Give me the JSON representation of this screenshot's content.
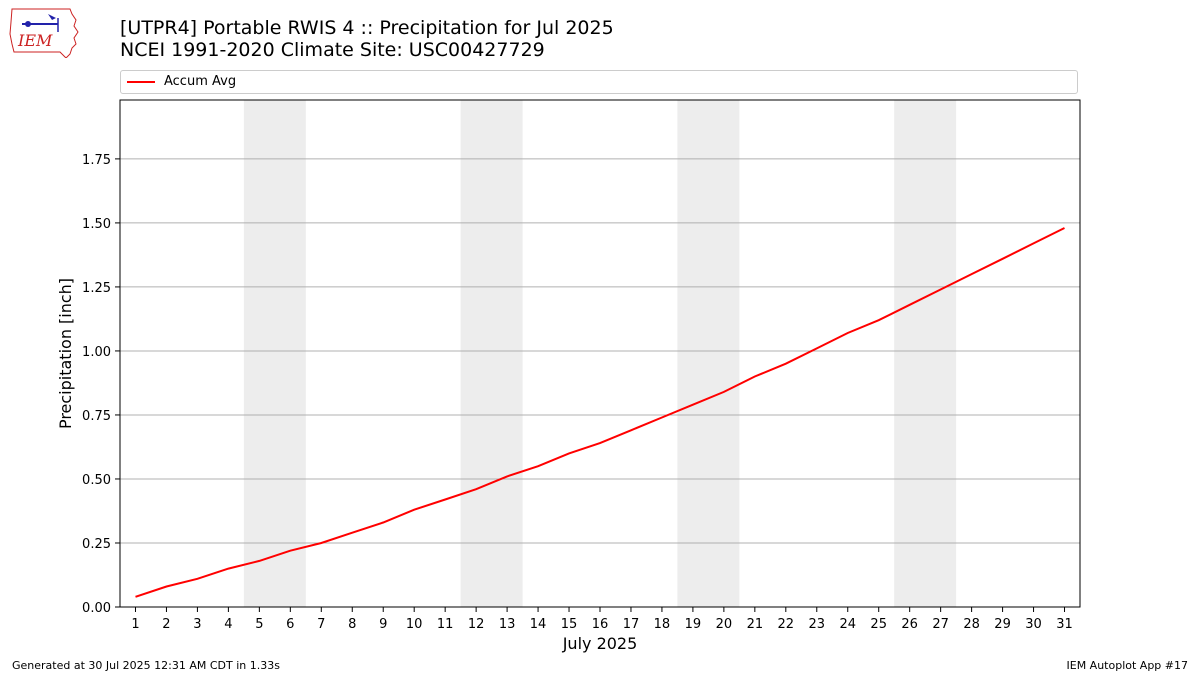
{
  "header": {
    "title_line1": "[UTPR4] Portable RWIS 4 :: Precipitation for Jul 2025",
    "title_line2": "NCEI 1991-2020 Climate Site: USC00427729"
  },
  "logo": {
    "text": "IEM",
    "color": "#cc2222",
    "icon": "iowa-state-outline-icon"
  },
  "footer": {
    "left": "Generated at 30 Jul 2025 12:31 AM CDT in 1.33s",
    "right": "IEM Autoplot App #17"
  },
  "chart_data": {
    "type": "line",
    "xlabel": "July 2025",
    "ylabel": "Precipitation [inch]",
    "x": [
      1,
      2,
      3,
      4,
      5,
      6,
      7,
      8,
      9,
      10,
      11,
      12,
      13,
      14,
      15,
      16,
      17,
      18,
      19,
      20,
      21,
      22,
      23,
      24,
      25,
      26,
      27,
      28,
      29,
      30,
      31
    ],
    "xlim": [
      0.5,
      31.5
    ],
    "ylim": [
      0,
      1.98
    ],
    "yticks": [
      0,
      0.25,
      0.5,
      0.75,
      1.0,
      1.25,
      1.5,
      1.75
    ],
    "ytick_labels": [
      "0.00",
      "0.25",
      "0.50",
      "0.75",
      "1.00",
      "1.25",
      "1.50",
      "1.75"
    ],
    "grid": "horizontal",
    "legend_placement": "top",
    "weekend_shading": [
      [
        5,
        6
      ],
      [
        12,
        13
      ],
      [
        19,
        20
      ],
      [
        26,
        27
      ]
    ],
    "shade_color": "#ededed",
    "series": [
      {
        "name": "Accum Avg",
        "color": "#ff0000",
        "values": [
          0.04,
          0.08,
          0.11,
          0.15,
          0.18,
          0.22,
          0.25,
          0.29,
          0.33,
          0.38,
          0.42,
          0.46,
          0.51,
          0.55,
          0.6,
          0.64,
          0.69,
          0.74,
          0.79,
          0.84,
          0.9,
          0.95,
          1.01,
          1.07,
          1.12,
          1.18,
          1.24,
          1.3,
          1.36,
          1.42,
          1.48
        ]
      }
    ]
  }
}
